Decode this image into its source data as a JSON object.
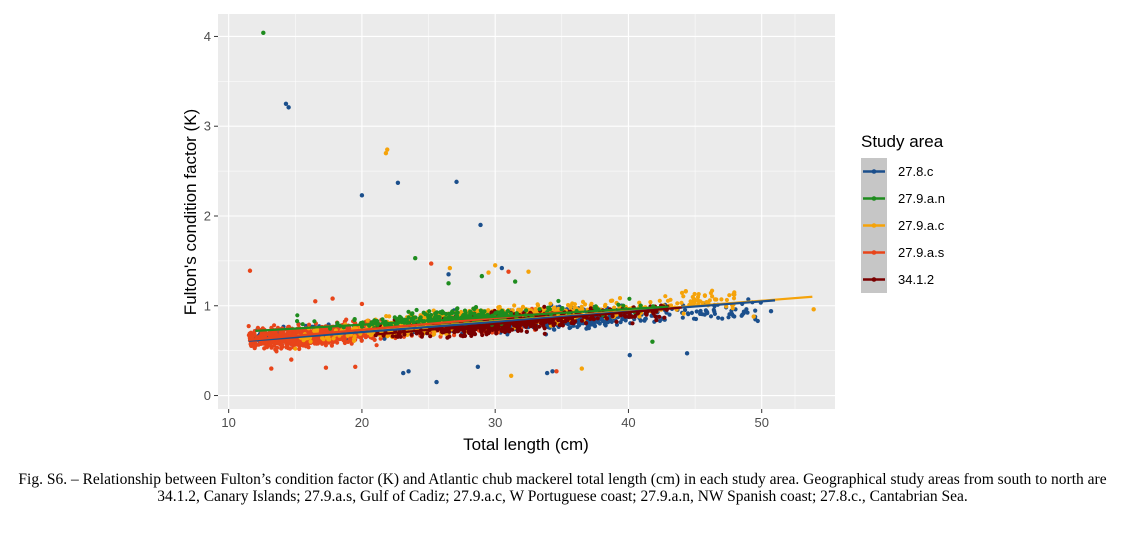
{
  "chart_data": {
    "type": "scatter",
    "xlabel": "Total length (cm)",
    "ylabel": "Fulton's condition factor (K)",
    "xlim": [
      9.2,
      55.5
    ],
    "ylim": [
      -0.15,
      4.25
    ],
    "x_ticks": [
      10,
      20,
      30,
      40,
      50
    ],
    "y_ticks": [
      0,
      1,
      2,
      3,
      4
    ],
    "grid": true,
    "legend": {
      "title": "Study area",
      "placement": "right",
      "entries": [
        "27.8.c",
        "27.9.a.n",
        "27.9.a.c",
        "27.9.a.s",
        "34.1.2"
      ]
    },
    "series": [
      {
        "name": "27.8.c",
        "color": "#1b4f8c",
        "cloud": {
          "x_range": [
            11.5,
            50
          ],
          "center_k": "0.68 + 0.0075*(L-12)",
          "spread": 0.12
        },
        "fit": {
          "x": [
            11.5,
            51
          ],
          "y": [
            0.61,
            1.06
          ]
        },
        "outliers": [
          [
            14.3,
            3.25
          ],
          [
            14.5,
            3.21
          ],
          [
            20,
            2.23
          ],
          [
            22.7,
            2.37
          ],
          [
            27.1,
            2.38
          ],
          [
            28.9,
            1.9
          ],
          [
            23.1,
            0.25
          ],
          [
            23.5,
            0.27
          ],
          [
            25.6,
            0.15
          ],
          [
            28.7,
            0.32
          ],
          [
            33.9,
            0.25
          ],
          [
            34.3,
            0.27
          ],
          [
            44.4,
            0.47
          ],
          [
            30.5,
            1.42
          ],
          [
            50.7,
            0.94
          ],
          [
            40.1,
            0.45
          ],
          [
            26.5,
            1.35
          ]
        ]
      },
      {
        "name": "27.9.a.n",
        "color": "#1e8c1e",
        "cloud": {
          "x_range": [
            15,
            42
          ],
          "center_k": "0.74 + 0.0085*(L-12)",
          "spread": 0.1
        },
        "fit": {
          "x": [
            12,
            43
          ],
          "y": [
            0.72,
            0.99
          ]
        },
        "outliers": [
          [
            12.6,
            4.04
          ],
          [
            24,
            1.53
          ],
          [
            26.5,
            1.25
          ],
          [
            29,
            1.33
          ],
          [
            31.5,
            1.27
          ],
          [
            41.8,
            0.6
          ]
        ]
      },
      {
        "name": "27.9.a.c",
        "color": "#f5a30a",
        "cloud": {
          "x_range": [
            15,
            48
          ],
          "center_k": "0.63 + 0.0125*(L-12)",
          "spread": 0.12
        },
        "fit": {
          "x": [
            12,
            53.8
          ],
          "y": [
            0.62,
            1.1
          ]
        },
        "outliers": [
          [
            21.8,
            2.7
          ],
          [
            21.9,
            2.74
          ],
          [
            30,
            1.45
          ],
          [
            29.5,
            1.37
          ],
          [
            32.5,
            1.38
          ],
          [
            53.9,
            0.96
          ],
          [
            49.4,
            0.88
          ],
          [
            36.5,
            0.3
          ],
          [
            31.2,
            0.22
          ],
          [
            44.3,
            1.16
          ],
          [
            26.6,
            1.42
          ],
          [
            46,
            1.02
          ]
        ]
      },
      {
        "name": "27.9.a.s",
        "color": "#e8451a",
        "cloud": {
          "x_range": [
            11.5,
            33
          ],
          "center_k": "0.62 + 0.011*(L-12)",
          "spread": 0.12
        },
        "fit": {
          "x": [
            11.5,
            35
          ],
          "y": [
            0.62,
            0.93
          ]
        },
        "outliers": [
          [
            11.6,
            1.39
          ],
          [
            16.5,
            1.05
          ],
          [
            17.8,
            1.08
          ],
          [
            20,
            1.02
          ],
          [
            25.2,
            1.47
          ],
          [
            31,
            1.38
          ],
          [
            14.7,
            0.4
          ],
          [
            17.3,
            0.31
          ],
          [
            13.2,
            0.3
          ],
          [
            34.6,
            0.27
          ],
          [
            19.5,
            0.32
          ]
        ]
      },
      {
        "name": "34.1.2",
        "color": "#7a0000",
        "cloud": {
          "x_range": [
            21,
            43
          ],
          "center_k": "0.70 + 0.0112*(L-21)",
          "spread": 0.11
        },
        "fit": {
          "x": [
            21,
            44
          ],
          "y": [
            0.68,
            0.98
          ]
        },
        "outliers": []
      }
    ]
  },
  "caption": "Fig. S6. – Relationship between Fulton’s condition factor (K) and Atlantic chub mackerel total length (cm) in each study area. Geographical study areas from south to north are 34.1.2, Canary Islands; 27.9.a.s, Gulf of Cadiz; 27.9.a.c, W Portuguese coast; 27.9.a.n, NW Spanish coast; 27.8.c., Cantabrian Sea."
}
